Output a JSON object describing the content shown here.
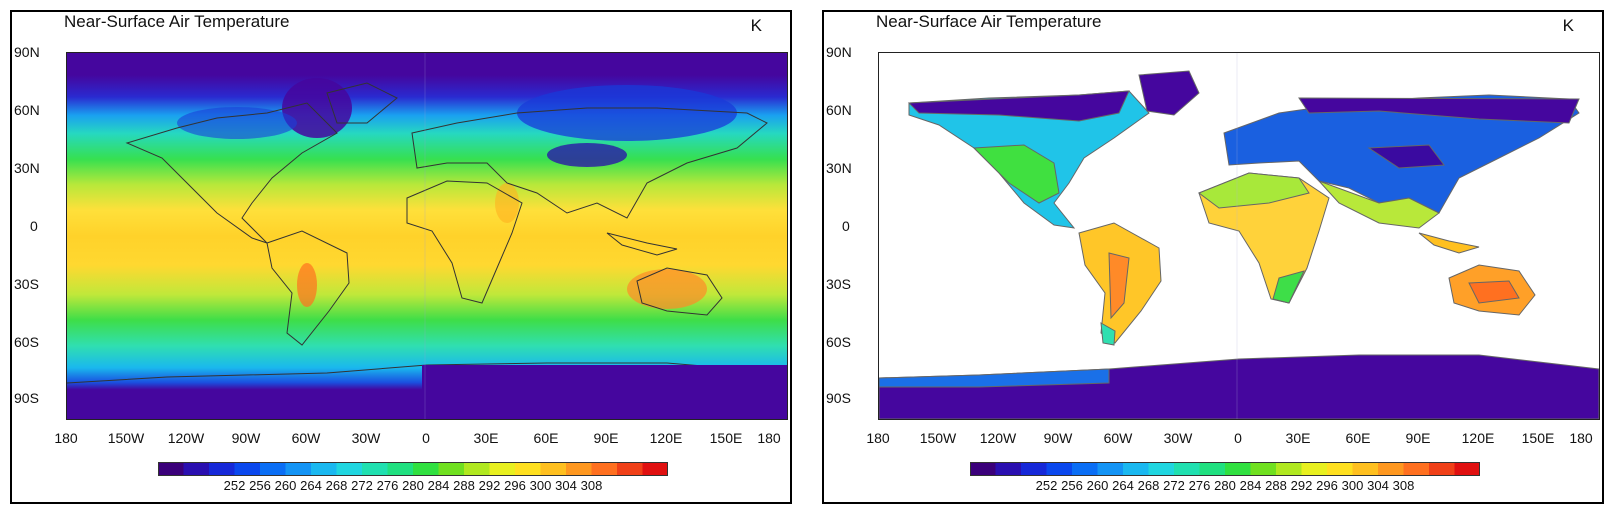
{
  "panels": [
    {
      "title": "Near-Surface Air Temperature",
      "unit": "K"
    },
    {
      "title": "Near-Surface Air Temperature",
      "unit": "K"
    }
  ],
  "map": {
    "lat_labels": [
      "90N",
      "60N",
      "30N",
      "0",
      "30S",
      "60S",
      "90S"
    ],
    "lon_labels": [
      "180",
      "150W",
      "120W",
      "90W",
      "60W",
      "30W",
      "0",
      "30E",
      "60E",
      "90E",
      "120E",
      "150E",
      "180"
    ]
  },
  "colorbar": {
    "labels": [
      "252",
      "256",
      "260",
      "264",
      "268",
      "272",
      "276",
      "280",
      "284",
      "288",
      "292",
      "296",
      "300",
      "304",
      "308"
    ],
    "colors": [
      "#3b007a",
      "#2a0fb0",
      "#1628d8",
      "#0a48ee",
      "#0a6ef5",
      "#1494f5",
      "#1ab8f0",
      "#20d6e0",
      "#20e0b0",
      "#20e080",
      "#30e040",
      "#70e020",
      "#b0e820",
      "#e8f020",
      "#ffe020",
      "#ffc020",
      "#ff9820",
      "#ff7020",
      "#f04018",
      "#e01010"
    ]
  },
  "legend_colors": {
    "polar": "#45069e",
    "cold": "#1a3ad8",
    "cool": "#20a8f0",
    "mild": "#28d8c8",
    "temperate": "#34e04a",
    "warm": "#b8e83a",
    "subtropic": "#ffe438",
    "tropic": "#ffc020",
    "hot": "#ff8a28",
    "land_outline": "#555555"
  }
}
